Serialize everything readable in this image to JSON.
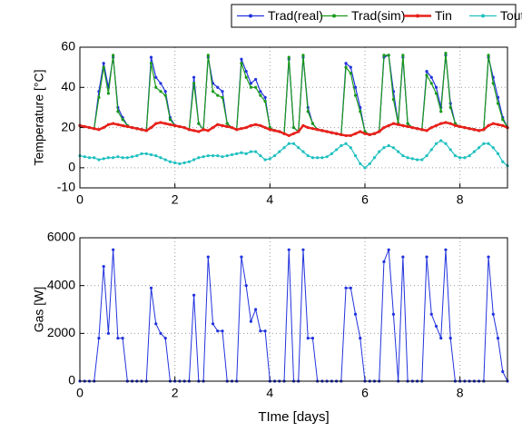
{
  "chart_data": [
    {
      "type": "line",
      "ylabel": "Temperature [°C]",
      "legend": "top",
      "grid": true,
      "xlim": [
        0,
        9
      ],
      "xticks": [
        0,
        2,
        4,
        6,
        8
      ],
      "ylim": [
        -10,
        60
      ],
      "yticks": [
        -10,
        0,
        20,
        40,
        60
      ],
      "x": [
        0,
        0.1,
        0.2,
        0.3,
        0.4,
        0.5,
        0.6,
        0.7,
        0.8,
        0.9,
        1,
        1.1,
        1.2,
        1.3,
        1.4,
        1.5,
        1.6,
        1.7,
        1.8,
        1.9,
        2,
        2.1,
        2.2,
        2.3,
        2.4,
        2.5,
        2.6,
        2.7,
        2.8,
        2.9,
        3,
        3.1,
        3.2,
        3.3,
        3.4,
        3.5,
        3.6,
        3.7,
        3.8,
        3.9,
        4,
        4.1,
        4.2,
        4.3,
        4.4,
        4.5,
        4.6,
        4.7,
        4.8,
        4.9,
        5,
        5.1,
        5.2,
        5.3,
        5.4,
        5.5,
        5.6,
        5.7,
        5.8,
        5.9,
        6,
        6.1,
        6.2,
        6.3,
        6.4,
        6.5,
        6.6,
        6.7,
        6.8,
        6.9,
        7,
        7.1,
        7.2,
        7.3,
        7.4,
        7.5,
        7.6,
        7.7,
        7.8,
        7.9,
        8,
        8.1,
        8.2,
        8.3,
        8.4,
        8.5,
        8.6,
        8.7,
        8.8,
        8.9,
        9
      ],
      "series": [
        {
          "name": "Trad(real)",
          "color": "#2233dd",
          "values": [
            21,
            20.5,
            20,
            19.5,
            38,
            52,
            40,
            55,
            30,
            25,
            21,
            20,
            19.5,
            19,
            18.5,
            55,
            45,
            42,
            38,
            25,
            21,
            20.5,
            20,
            19,
            45,
            22,
            19,
            55,
            42,
            40,
            38,
            22,
            20,
            19,
            54,
            48,
            42,
            44,
            38,
            35,
            20,
            18.5,
            18,
            17,
            54,
            20,
            18,
            55,
            30,
            22,
            19,
            18.5,
            18,
            17.5,
            17,
            16.5,
            52,
            50,
            40,
            30,
            18,
            16.5,
            17,
            18,
            55,
            56,
            38,
            22,
            55,
            22,
            20,
            19.5,
            19,
            48,
            45,
            40,
            30,
            56,
            32,
            22,
            20.5,
            20,
            19.5,
            19,
            18.5,
            19,
            55,
            45,
            35,
            25,
            20
          ]
        },
        {
          "name": "Trad(sim)",
          "color": "#1a9a1a",
          "values": [
            21,
            20.5,
            20,
            19.5,
            35,
            50,
            37,
            56,
            28,
            24,
            21,
            20,
            19.5,
            19,
            18.5,
            52,
            40,
            38,
            36,
            24,
            21,
            20.5,
            20,
            19,
            42,
            22,
            19,
            56,
            38,
            36,
            35,
            22,
            20,
            19,
            52,
            45,
            40,
            40,
            36,
            33,
            20,
            18.5,
            18,
            17,
            55,
            20,
            18,
            56,
            28,
            22,
            19,
            18.5,
            18,
            17.5,
            17,
            16.5,
            50,
            47,
            36,
            28,
            18,
            16.5,
            17,
            18,
            56,
            56,
            34,
            22,
            56,
            22,
            20,
            19.5,
            19,
            46,
            42,
            37,
            28,
            57,
            30,
            22,
            20.5,
            20,
            19.5,
            19,
            18.5,
            19,
            56,
            42,
            32,
            24,
            20
          ]
        },
        {
          "name": "Tin",
          "color": "#e8201a",
          "values": [
            21,
            20.5,
            20,
            19.5,
            19,
            20,
            21.5,
            22,
            21.5,
            21,
            20.5,
            20,
            19.5,
            19,
            18.5,
            20,
            22,
            22.5,
            22,
            21.5,
            21,
            20.5,
            20,
            19,
            18.5,
            18,
            19,
            18.5,
            20,
            21.5,
            21,
            20.5,
            20,
            19,
            19.5,
            20,
            21,
            21.5,
            21,
            20,
            19,
            18.5,
            18,
            17,
            16,
            17,
            18,
            21,
            20,
            19.5,
            19,
            18.5,
            18,
            17.5,
            17,
            16.5,
            16,
            16,
            17,
            18,
            17,
            16.5,
            17,
            18,
            20,
            21,
            22,
            21.5,
            21,
            20.5,
            20,
            19.5,
            19,
            18.5,
            20,
            21,
            22,
            22.5,
            22,
            21,
            20.5,
            20,
            19.5,
            19,
            18.5,
            19,
            21,
            22,
            21.5,
            21,
            20
          ]
        },
        {
          "name": "Tout",
          "color": "#20c0c0",
          "values": [
            6,
            5.5,
            5,
            5,
            4,
            4.5,
            5,
            5,
            5.5,
            5,
            5,
            5.5,
            6,
            7,
            7,
            6.5,
            6,
            5,
            4,
            3,
            2.5,
            2,
            2.5,
            3,
            4,
            5,
            5.5,
            6,
            6,
            6,
            5.5,
            6,
            6.5,
            7,
            7.5,
            7,
            8,
            8,
            6,
            4,
            4.5,
            6,
            8,
            10,
            12,
            12,
            10,
            8,
            6,
            5,
            5,
            5,
            5.5,
            7,
            9,
            11,
            12,
            10,
            6,
            2,
            0,
            2,
            5,
            8,
            10,
            11,
            10,
            8,
            6,
            5,
            4.5,
            4,
            4,
            6,
            9,
            12,
            13.5,
            12,
            9,
            6,
            5,
            5,
            6,
            8,
            10,
            12,
            12,
            10,
            7,
            3,
            1
          ]
        }
      ]
    },
    {
      "type": "line",
      "ylabel": "Gas [W]",
      "xlabel": "TIme [days]",
      "grid": true,
      "xlim": [
        0,
        9
      ],
      "xticks": [
        0,
        2,
        4,
        6,
        8
      ],
      "ylim": [
        0,
        6000
      ],
      "yticks": [
        0,
        2000,
        4000,
        6000
      ],
      "x": [
        0,
        0.1,
        0.2,
        0.3,
        0.4,
        0.5,
        0.6,
        0.7,
        0.8,
        0.9,
        1,
        1.1,
        1.2,
        1.3,
        1.4,
        1.5,
        1.6,
        1.7,
        1.8,
        1.9,
        2,
        2.1,
        2.2,
        2.3,
        2.4,
        2.5,
        2.6,
        2.7,
        2.8,
        2.9,
        3,
        3.1,
        3.2,
        3.3,
        3.4,
        3.5,
        3.6,
        3.7,
        3.8,
        3.9,
        4,
        4.1,
        4.2,
        4.3,
        4.4,
        4.5,
        4.6,
        4.7,
        4.8,
        4.9,
        5,
        5.1,
        5.2,
        5.3,
        5.4,
        5.5,
        5.6,
        5.7,
        5.8,
        5.9,
        6,
        6.1,
        6.2,
        6.3,
        6.4,
        6.5,
        6.6,
        6.7,
        6.8,
        6.9,
        7,
        7.1,
        7.2,
        7.3,
        7.4,
        7.5,
        7.6,
        7.7,
        7.8,
        7.9,
        8,
        8.1,
        8.2,
        8.3,
        8.4,
        8.5,
        8.6,
        8.7,
        8.8,
        8.9,
        9
      ],
      "series": [
        {
          "color": "#2233dd",
          "values": [
            0,
            0,
            0,
            0,
            1800,
            4800,
            2000,
            5500,
            1800,
            1800,
            0,
            0,
            0,
            0,
            0,
            3900,
            2400,
            2000,
            1800,
            0,
            0,
            0,
            0,
            0,
            3600,
            0,
            0,
            5200,
            2400,
            2100,
            2100,
            0,
            0,
            0,
            5200,
            4000,
            2500,
            3000,
            2100,
            2100,
            0,
            0,
            0,
            0,
            5500,
            0,
            0,
            5500,
            1800,
            1800,
            0,
            0,
            0,
            0,
            0,
            0,
            3900,
            3900,
            2800,
            1800,
            0,
            0,
            0,
            0,
            5000,
            5500,
            2800,
            0,
            5200,
            0,
            0,
            0,
            0,
            5200,
            2800,
            2300,
            1800,
            5500,
            1800,
            0,
            0,
            0,
            0,
            0,
            0,
            0,
            5200,
            2800,
            1800,
            400,
            0
          ]
        }
      ]
    }
  ]
}
